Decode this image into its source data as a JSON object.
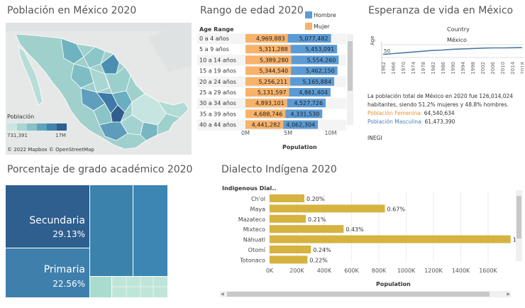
{
  "map": {
    "title": "Población en México 2020",
    "legend_title": "Población",
    "legend_min": "731,391",
    "legend_max": "17M",
    "attribution": "© 2022 Mapbox © OpenStreetMap"
  },
  "age": {
    "title": "Rango de edad 2020",
    "header": "Age Range",
    "legend": [
      {
        "label": "Hombre",
        "color": "#5b9bd5"
      },
      {
        "label": "Mujer",
        "color": "#f8b26a"
      }
    ],
    "rows": [
      {
        "label": "0 a 4 años",
        "mujer": "4,969,883",
        "hombre": "5,077,482"
      },
      {
        "label": "5 a 9 años",
        "mujer": "5,311,288",
        "hombre": "5,453,091"
      },
      {
        "label": "10 a 14 años",
        "mujer": "5,389,280",
        "hombre": "5,554,260"
      },
      {
        "label": "15 a 19 años",
        "mujer": "5,344,540",
        "hombre": "5,462,150"
      },
      {
        "label": "20 a 24 años",
        "mujer": "5,256,211",
        "hombre": "5,165,884"
      },
      {
        "label": "25 a 29 años",
        "mujer": "5,131,597",
        "hombre": "4,861,404"
      },
      {
        "label": "30 a 34 años",
        "mujer": "4,893,101",
        "hombre": "4,527,726"
      },
      {
        "label": "35 a 39 años",
        "mujer": "4,688,746",
        "hombre": "4,331,530"
      },
      {
        "label": "40 a 44 años",
        "mujer": "4,441,282",
        "hombre": "4,062,304"
      }
    ],
    "x_ticks": [
      "0M",
      "5M",
      "10M"
    ],
    "x_label": "Population"
  },
  "life": {
    "title": "Esperanza de vida en México",
    "country_header": "Country",
    "country": "México",
    "y_label": "Age",
    "y_tick": "50",
    "x_ticks": [
      "1962",
      "1966",
      "1970",
      "1974",
      "1978",
      "1982",
      "1986",
      "1990",
      "1994",
      "1998",
      "2002",
      "2006",
      "2010",
      "2014",
      "2018"
    ],
    "summary": "La población total de México en 2020 fue 126,014,024 habitantes, siendo 51.2% mujeres y 48.8% hombres.",
    "female_label": "Población Femenina:",
    "female_value": "64,540,634",
    "male_label": "Población Masculina:",
    "male_value": "61,473,390",
    "source": "INEGI",
    "colors": {
      "female": "#e8922e",
      "male": "#4a7fb5"
    }
  },
  "academic": {
    "title": "Porcentaje de grado académico 2020",
    "tiles": [
      {
        "label": "Secundaria",
        "value": "29.13%"
      },
      {
        "label": "Primaria",
        "value": "22.56%"
      }
    ]
  },
  "dialect": {
    "title": "Dialecto Indígena 2020",
    "header": "Indigenous Dial..",
    "bar_color": "#d6b240",
    "x_label": "Population",
    "x_ticks": [
      "0K",
      "200K",
      "400K",
      "600K",
      "800K",
      "1000K",
      "1200K",
      "1400K",
      "1600K"
    ]
  },
  "chart_data": [
    {
      "type": "bar",
      "title": "Rango de edad 2020",
      "orientation": "horizontal-stacked",
      "xlabel": "Population",
      "categories": [
        "0 a 4 años",
        "5 a 9 años",
        "10 a 14 años",
        "15 a 19 años",
        "20 a 24 años",
        "25 a 29 años",
        "30 a 34 años",
        "35 a 39 años",
        "40 a 44 años"
      ],
      "series": [
        {
          "name": "Mujer",
          "values": [
            4969883,
            5311288,
            5389280,
            5344540,
            5256211,
            5131597,
            4893101,
            4688746,
            4441282
          ]
        },
        {
          "name": "Hombre",
          "values": [
            5077482,
            5453091,
            5554260,
            5462150,
            5165884,
            4861404,
            4527726,
            4331530,
            4062304
          ]
        }
      ],
      "xlim": [
        0,
        11000000
      ]
    },
    {
      "type": "bar",
      "title": "Dialecto Indígena 2020",
      "orientation": "horizontal",
      "xlabel": "Population",
      "categories": [
        "Ch'ol",
        "Maya",
        "Mazateco",
        "Mixteco",
        "Náhuatl",
        "Otomí",
        "Totonaco"
      ],
      "values": [
        254700,
        844400,
        265000,
        542000,
        1765000,
        302500,
        277200
      ],
      "labels": [
        "0.20%",
        "0.67%",
        "0.21%",
        "0.43%",
        "1.4",
        "0.24%",
        "0.22%"
      ],
      "xlim": [
        0,
        1760000
      ]
    },
    {
      "type": "line",
      "title": "Esperanza de vida en México",
      "ylabel": "Age",
      "x": [
        1962,
        1966,
        1970,
        1974,
        1978,
        1982,
        1986,
        1990,
        1994,
        1998,
        2002,
        2006,
        2010,
        2014,
        2018
      ],
      "series": [
        {
          "name": "México",
          "values": [
            58,
            60,
            62,
            64,
            66,
            68,
            69,
            71,
            72,
            73,
            74,
            74.5,
            74.6,
            75,
            75.3
          ]
        }
      ]
    }
  ]
}
